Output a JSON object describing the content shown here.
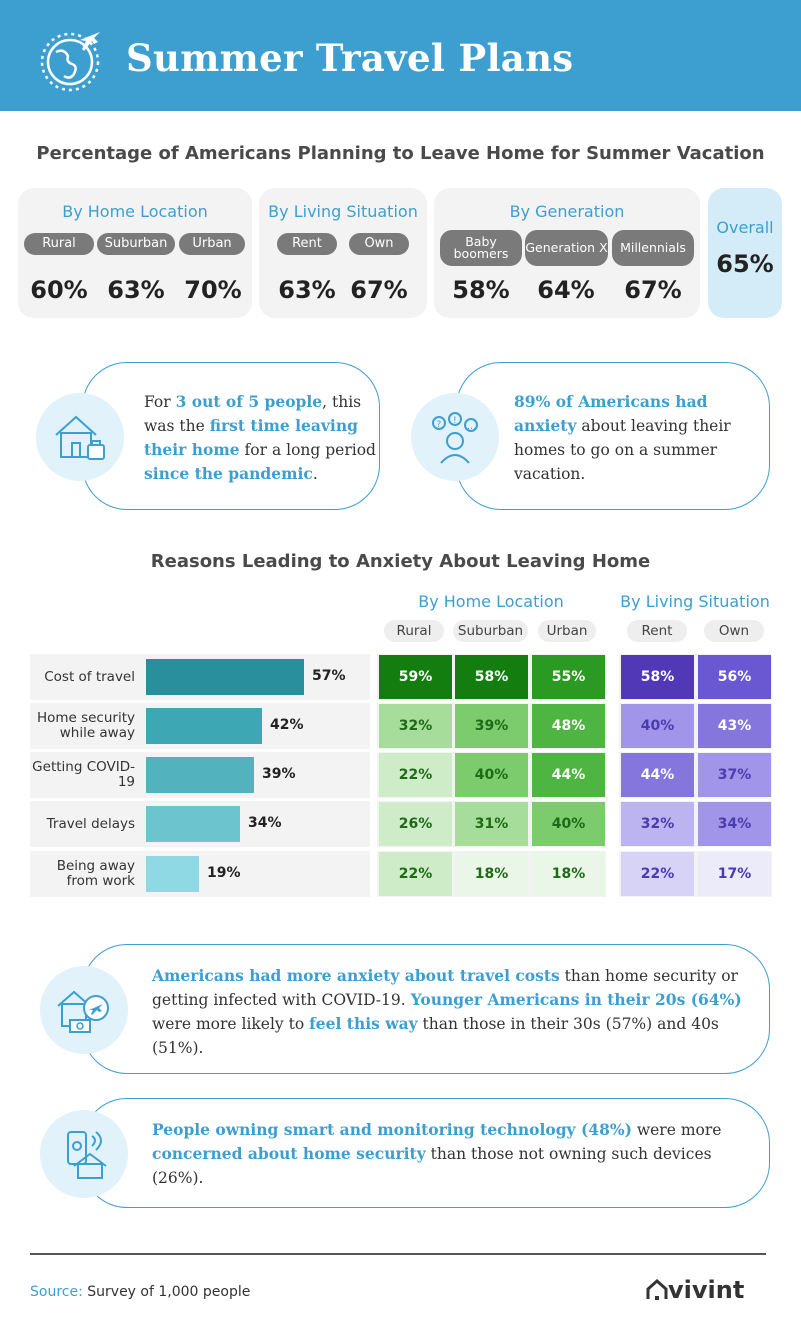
{
  "header": {
    "title": "Summer Travel Plans",
    "icon": "globe-airplane-icon"
  },
  "section1": {
    "title": "Percentage of Americans Planning to Leave Home for Summer Vacation",
    "groups": [
      {
        "title": "By Home Location",
        "items": [
          {
            "label": "Rural",
            "value": "60%"
          },
          {
            "label": "Suburban",
            "value": "63%"
          },
          {
            "label": "Urban",
            "value": "70%"
          }
        ]
      },
      {
        "title": "By Living Situation",
        "items": [
          {
            "label": "Rent",
            "value": "63%"
          },
          {
            "label": "Own",
            "value": "67%"
          }
        ]
      },
      {
        "title": "By Generation",
        "items": [
          {
            "label": "Baby boomers",
            "value": "58%"
          },
          {
            "label": "Generation X",
            "value": "64%"
          },
          {
            "label": "Millennials",
            "value": "67%"
          }
        ]
      }
    ],
    "overall": {
      "label": "Overall",
      "value": "65%"
    }
  },
  "callout1": {
    "icon": "house-luggage-icon",
    "parts": [
      {
        "t": "For ",
        "s": ""
      },
      {
        "t": "3 out of 5 people",
        "s": "hl"
      },
      {
        "t": ", this was the ",
        "s": ""
      },
      {
        "t": "first time leaving their home",
        "s": "hl"
      },
      {
        "t": " for a long period ",
        "s": ""
      },
      {
        "t": "since the pandemic",
        "s": "hl"
      },
      {
        "t": ".",
        "s": ""
      }
    ]
  },
  "callout2": {
    "icon": "anxious-person-icon",
    "parts": [
      {
        "t": "89% of Americans had anxiety",
        "s": "hl"
      },
      {
        "t": " about leaving their homes to go on a summer vacation.",
        "s": ""
      }
    ]
  },
  "section2": {
    "title": "Reasons Leading to Anxiety About Leaving Home",
    "group_titles": [
      "By Home Location",
      "By Living Situation"
    ],
    "column_labels": [
      "Rural",
      "Suburban",
      "Urban",
      "Rent",
      "Own"
    ]
  },
  "chart_data": {
    "type": "bar",
    "categories": [
      "Cost of travel",
      "Home security while away",
      "Getting COVID-19",
      "Travel delays",
      "Being away from work"
    ],
    "values": [
      57,
      42,
      39,
      34,
      19
    ],
    "value_suffix": "%",
    "bar_colors": [
      "#2a8f9c",
      "#3ea7b4",
      "#52b2be",
      "#6cc4cf",
      "#8ed9e3"
    ],
    "heatmap": {
      "type": "heatmap",
      "columns": [
        "Rural",
        "Suburban",
        "Urban",
        "Rent",
        "Own"
      ],
      "rows": [
        "Cost of travel",
        "Home security while away",
        "Getting COVID-19",
        "Travel delays",
        "Being away from work"
      ],
      "values": [
        [
          59,
          58,
          55,
          58,
          56
        ],
        [
          32,
          39,
          48,
          40,
          43
        ],
        [
          22,
          40,
          44,
          44,
          37
        ],
        [
          26,
          31,
          40,
          32,
          34
        ],
        [
          22,
          18,
          18,
          22,
          17
        ]
      ],
      "palettes": {
        "home_location": "green",
        "living_situation": "purple"
      }
    }
  },
  "callout3": {
    "icon": "house-plane-money-icon",
    "parts": [
      {
        "t": "Americans had more anxiety about travel costs",
        "s": "hl"
      },
      {
        "t": " than home security or getting infected with COVID-19. ",
        "s": ""
      },
      {
        "t": "Younger Americans in their 20s (64%)",
        "s": "hl"
      },
      {
        "t": " were more likely to ",
        "s": ""
      },
      {
        "t": "feel this way",
        "s": "hl"
      },
      {
        "t": " than those in their 30s (57%) and 40s (51%).",
        "s": ""
      }
    ]
  },
  "callout4": {
    "icon": "smartphone-home-icon",
    "parts": [
      {
        "t": "People owning smart and monitoring technology (48%)",
        "s": "hl"
      },
      {
        "t": " were more ",
        "s": ""
      },
      {
        "t": "concerned about home security",
        "s": "hl"
      },
      {
        "t": " than those not owning such devices (26%).",
        "s": ""
      }
    ]
  },
  "footer": {
    "source_label": "Source:",
    "source_text": " Survey of 1,000 people",
    "brand": "vivint",
    "brand_icon": "house-outline-icon"
  }
}
